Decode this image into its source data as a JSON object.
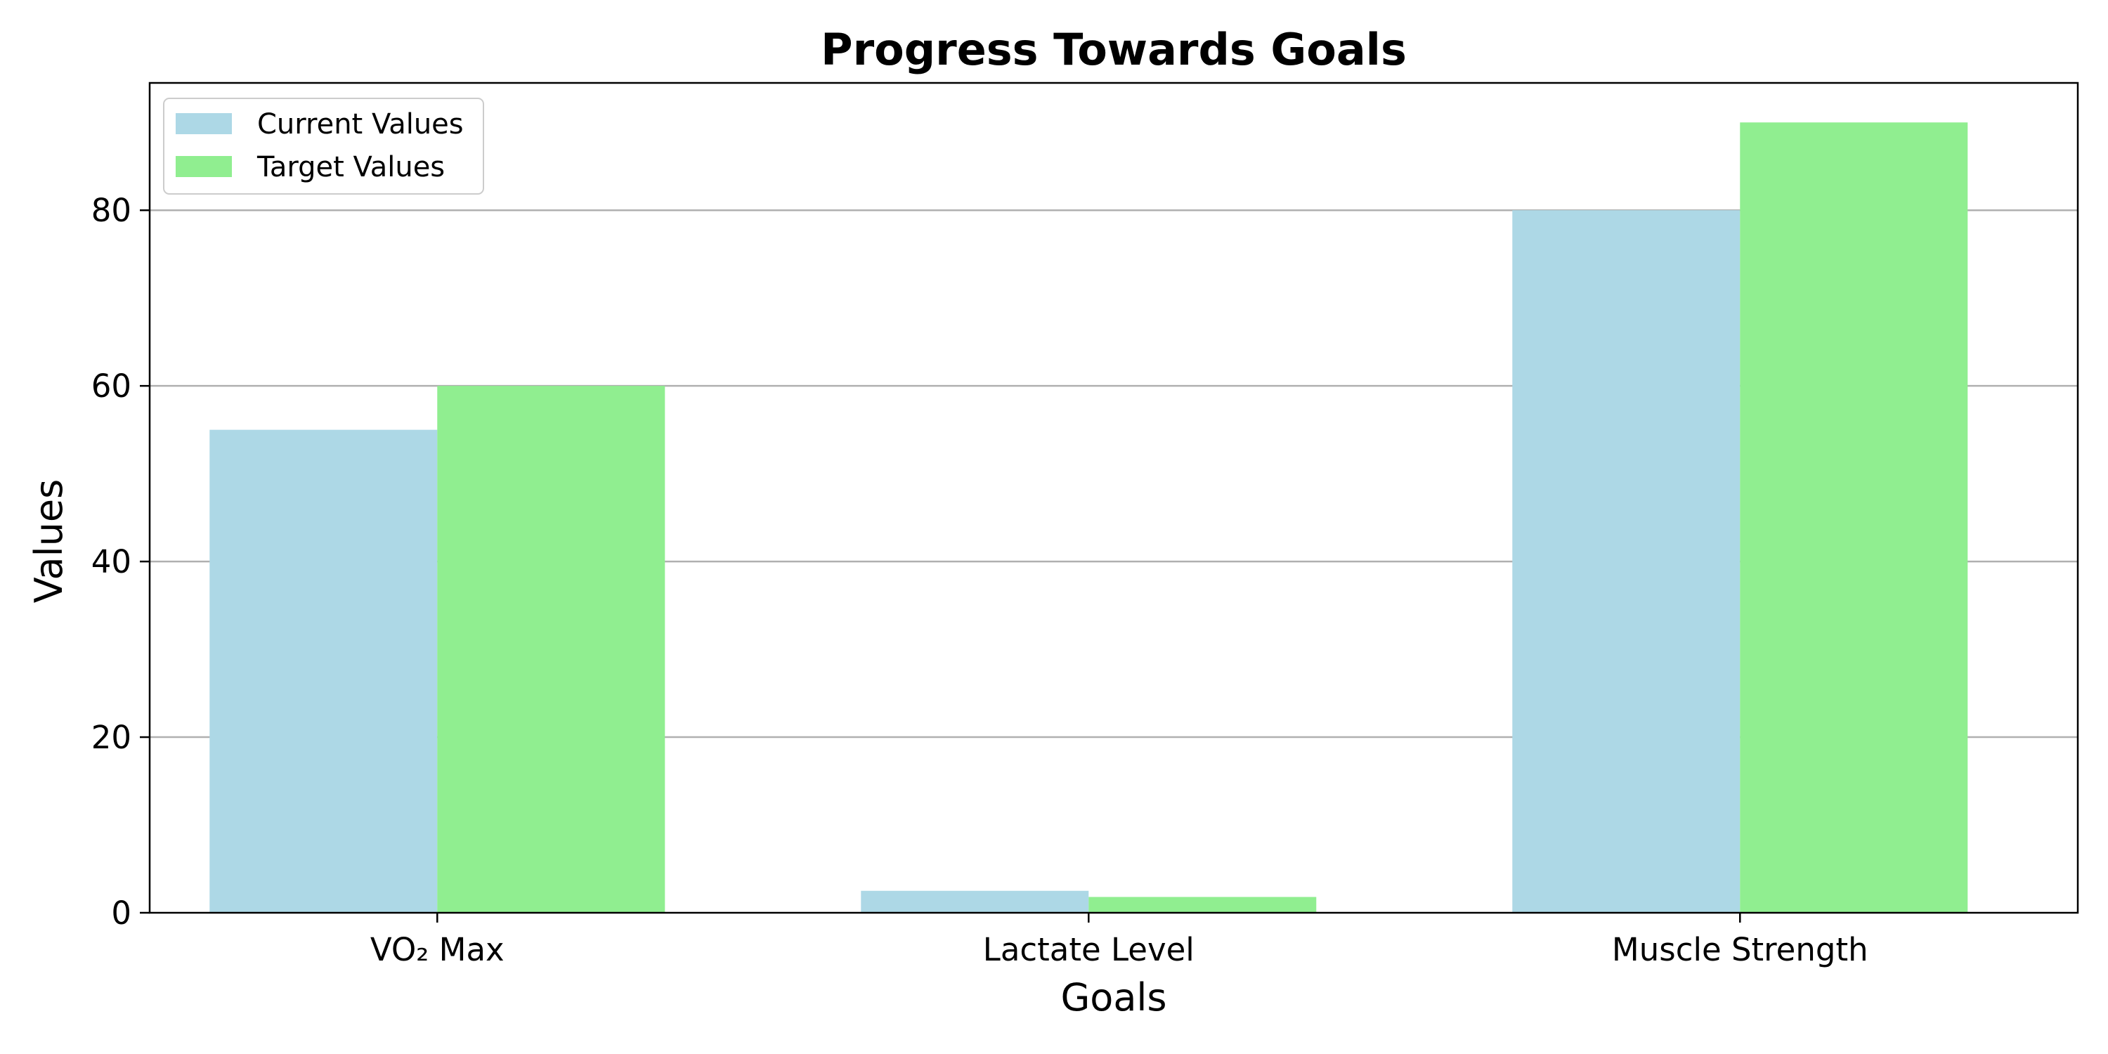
{
  "chart_data": {
    "type": "bar",
    "title": "Progress Towards Goals",
    "xlabel": "Goals",
    "ylabel": "Values",
    "categories": [
      "VO₂ Max",
      "Lactate Level",
      "Muscle Strength"
    ],
    "series": [
      {
        "name": "Current Values",
        "values": [
          55,
          2.5,
          80
        ],
        "color": "#add8e6"
      },
      {
        "name": "Target Values",
        "values": [
          60,
          1.8,
          90
        ],
        "color": "#90ee90"
      }
    ],
    "ylim": [
      0,
      94.5
    ],
    "yticks": [
      "0",
      "20",
      "40",
      "60",
      "80"
    ],
    "grid": "y-axis",
    "legend": "top-left"
  }
}
